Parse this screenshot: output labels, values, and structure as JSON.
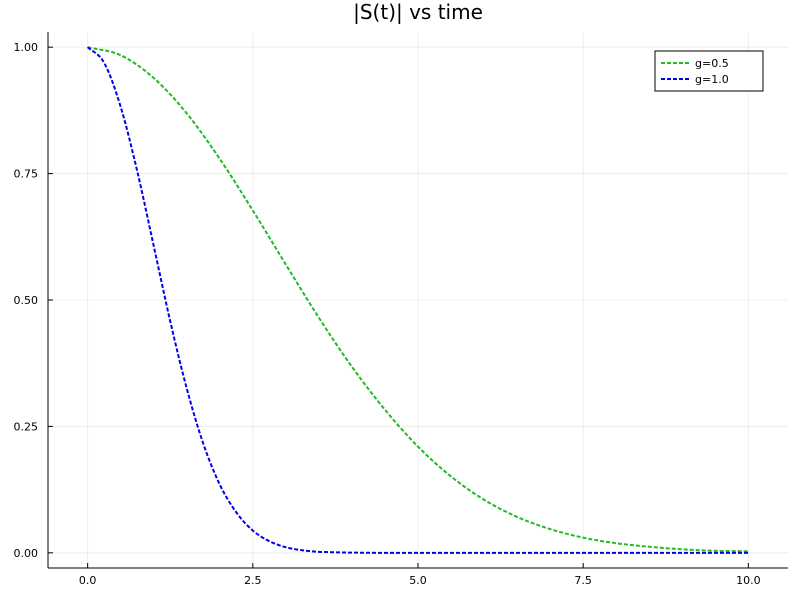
{
  "chart_data": {
    "type": "line",
    "title": "|S(t)| vs time",
    "xlabel": "",
    "ylabel": "",
    "xlim": [
      -0.6,
      10.6
    ],
    "ylim": [
      -0.03,
      1.03
    ],
    "xticks": [
      0.0,
      2.5,
      5.0,
      7.5,
      10.0
    ],
    "xtick_labels": [
      "0.0",
      "2.5",
      "5.0",
      "7.5",
      "10.0"
    ],
    "yticks": [
      0.0,
      0.25,
      0.5,
      0.75,
      1.0
    ],
    "ytick_labels": [
      "0.00",
      "0.25",
      "0.50",
      "0.75",
      "1.00"
    ],
    "grid": true,
    "legend_position": "top-right",
    "series": [
      {
        "name": "g=0.5",
        "color": "#22bb22",
        "line_style": "dashed",
        "x": [
          0,
          0.5,
          1,
          1.5,
          2,
          2.5,
          3,
          3.5,
          4,
          4.5,
          5,
          5.5,
          6,
          6.5,
          7,
          7.5,
          8,
          8.5,
          9,
          9.5,
          10
        ],
        "y": [
          1.0,
          0.984,
          0.939,
          0.869,
          0.779,
          0.677,
          0.57,
          0.465,
          0.368,
          0.283,
          0.21,
          0.151,
          0.105,
          0.071,
          0.047,
          0.03,
          0.019,
          0.012,
          0.007,
          0.004,
          0.003
        ]
      },
      {
        "name": "g=1.0",
        "color": "#0000ee",
        "line_style": "dashed",
        "x": [
          0,
          0.25,
          0.5,
          0.75,
          1,
          1.25,
          1.5,
          1.75,
          2,
          2.25,
          2.5,
          2.75,
          3,
          3.25,
          3.5,
          3.75,
          4,
          4.5,
          5,
          6,
          7,
          8,
          9,
          10
        ],
        "y": [
          1.0,
          0.969,
          0.882,
          0.755,
          0.607,
          0.458,
          0.325,
          0.216,
          0.135,
          0.08,
          0.044,
          0.023,
          0.011,
          0.005,
          0.002,
          0.001,
          0.0004,
          0.0,
          0.0,
          0.0,
          0.0,
          0.0,
          0.0,
          0.0
        ]
      }
    ]
  }
}
